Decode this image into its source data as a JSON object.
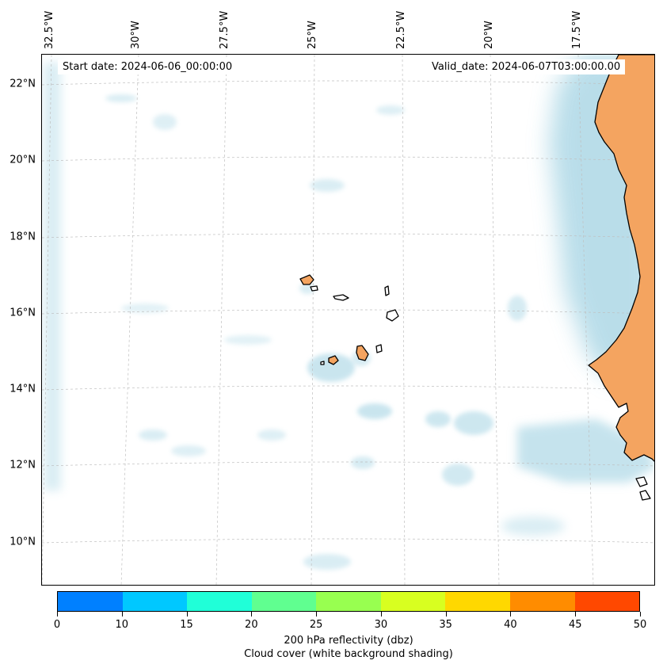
{
  "map": {
    "start_date": "Start date: 2024-06-06_00:00:00",
    "valid_date": "Valid_date: 2024-06-07T03:00:00.00",
    "longitude_labels": [
      "32.5°W",
      "30°W",
      "27.5°W",
      "25°W",
      "22.5°W",
      "20°W",
      "17.5°W"
    ],
    "latitude_labels": [
      "22°N",
      "20°N",
      "18°N",
      "16°N",
      "14°N",
      "12°N",
      "10°N"
    ],
    "land_color": "#f4a460",
    "cloud_color": "#add8e6",
    "gridlines": true
  },
  "colorbar": {
    "ticks": [
      "0",
      "10",
      "15",
      "20",
      "25",
      "30",
      "35",
      "40",
      "45",
      "50"
    ],
    "colors": [
      "#0080ff",
      "#00c8ff",
      "#20ffd8",
      "#60ff90",
      "#98ff50",
      "#d8ff20",
      "#ffd800",
      "#ff8c00",
      "#ff4800"
    ],
    "title_line1": "200 hPa reflectivity (dbz)",
    "title_line2": "Cloud cover (white background shading)"
  }
}
